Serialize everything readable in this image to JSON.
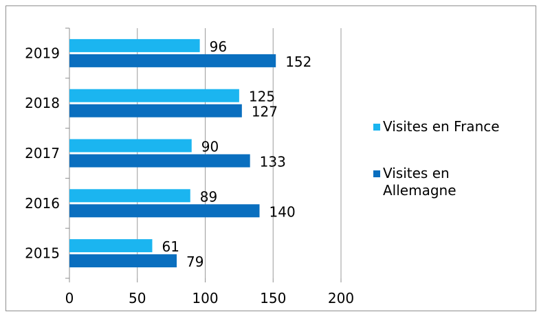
{
  "chart_data": {
    "type": "bar",
    "orientation": "horizontal",
    "categories": [
      "2019",
      "2018",
      "2017",
      "2016",
      "2015"
    ],
    "series": [
      {
        "name": "Visites en France",
        "color": "#1bb5f0",
        "values": [
          96,
          125,
          90,
          89,
          61
        ]
      },
      {
        "name": "Visites en Allemagne",
        "color": "#0a6fbf",
        "values": [
          152,
          127,
          133,
          140,
          79
        ]
      }
    ],
    "xlim": [
      0,
      200
    ],
    "x_ticks": [
      "0",
      "50",
      "100",
      "150",
      "200"
    ],
    "grid": true,
    "legend_position": "right",
    "legend": [
      {
        "lines": [
          "Visites en France"
        ],
        "color": "#1bb5f0"
      },
      {
        "lines": [
          "Visites en",
          "Allemagne"
        ],
        "color": "#0a6fbf"
      }
    ]
  }
}
